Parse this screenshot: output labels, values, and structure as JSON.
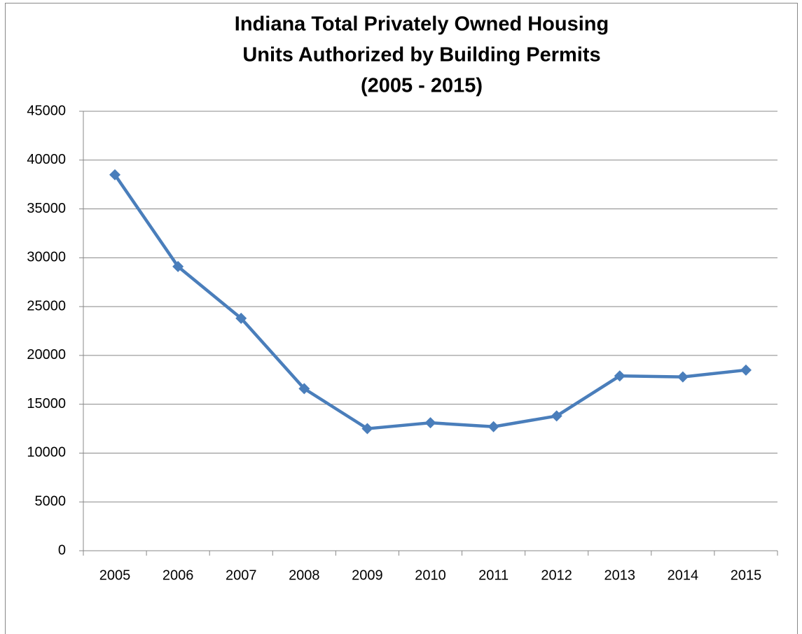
{
  "chart_data": {
    "type": "line",
    "title": [
      "Indiana Total Privately Owned Housing",
      "Units Authorized by Building Permits",
      "(2005 - 2015)"
    ],
    "categories": [
      "2005",
      "2006",
      "2007",
      "2008",
      "2009",
      "2010",
      "2011",
      "2012",
      "2013",
      "2014",
      "2015"
    ],
    "values": [
      38500,
      29100,
      23800,
      16600,
      12500,
      13100,
      12700,
      13800,
      17900,
      17800,
      18500
    ],
    "color": "#4a7ebb",
    "ylim": [
      0,
      45000
    ],
    "yticks": [
      0,
      5000,
      10000,
      15000,
      20000,
      25000,
      30000,
      35000,
      40000,
      45000
    ],
    "grid": true
  }
}
